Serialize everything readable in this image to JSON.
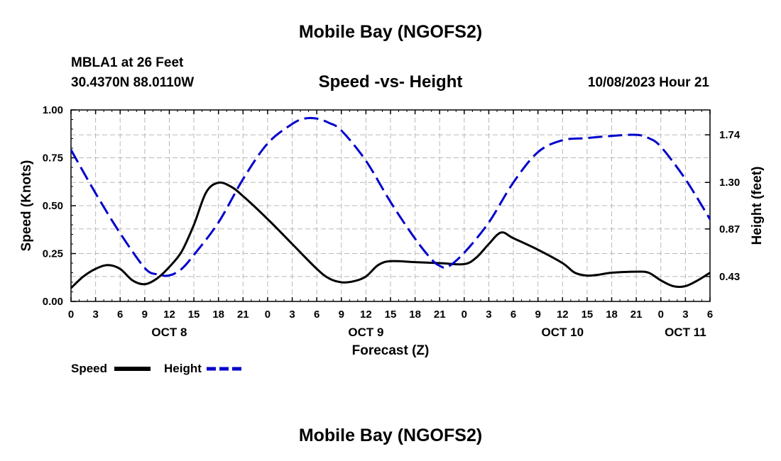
{
  "header": {
    "title_top": "Mobile Bay (NGOFS2)",
    "station": "MBLA1 at 26 Feet",
    "coords": "30.4370N  88.0110W",
    "subtitle": "Speed -vs- Height",
    "datetime": "10/08/2023 Hour 21",
    "title_bottom": "Mobile Bay (NGOFS2)"
  },
  "legend": {
    "speed_label": "Speed",
    "height_label": "Height"
  },
  "chart_data": {
    "type": "line",
    "title": "Speed -vs- Height",
    "xlabel": "Forecast (Z)",
    "ylabel": "Speed (Knots)",
    "y2label": "Height (feet)",
    "xlim": [
      0,
      78
    ],
    "ylim": [
      0,
      1.0
    ],
    "y2lim": [
      0.2,
      1.97
    ],
    "grid": true,
    "x_ticks": [
      0,
      3,
      6,
      9,
      12,
      15,
      18,
      21,
      24,
      27,
      30,
      33,
      36,
      39,
      42,
      45,
      48,
      51,
      54,
      57,
      60,
      63,
      66,
      69,
      72,
      75,
      78
    ],
    "x_tick_labels": [
      "0",
      "3",
      "6",
      "9",
      "12",
      "15",
      "18",
      "21",
      "0",
      "3",
      "6",
      "9",
      "12",
      "15",
      "18",
      "21",
      "0",
      "3",
      "6",
      "9",
      "12",
      "15",
      "18",
      "21",
      "0",
      "3",
      "6"
    ],
    "date_labels": [
      {
        "x": 12,
        "label": "OCT 8"
      },
      {
        "x": 36,
        "label": "OCT 9"
      },
      {
        "x": 60,
        "label": "OCT 10"
      },
      {
        "x": 75,
        "label": "OCT 11"
      }
    ],
    "y_ticks": [
      0.0,
      0.25,
      0.5,
      0.75,
      1.0
    ],
    "y_tick_labels": [
      "0.00",
      "0.25",
      "0.50",
      "0.75",
      "1.00"
    ],
    "y2_ticks": [
      0.43,
      0.87,
      1.3,
      1.74
    ],
    "y2_tick_labels": [
      "0.43",
      "0.87",
      "1.30",
      "1.74"
    ],
    "series": [
      {
        "name": "Speed",
        "axis": "left",
        "color": "#000000",
        "dash": "solid",
        "points": [
          [
            0,
            0.07
          ],
          [
            1.5,
            0.13
          ],
          [
            3,
            0.17
          ],
          [
            4.5,
            0.19
          ],
          [
            6,
            0.17
          ],
          [
            7.5,
            0.11
          ],
          [
            9,
            0.09
          ],
          [
            10.5,
            0.12
          ],
          [
            12,
            0.18
          ],
          [
            13.5,
            0.26
          ],
          [
            15,
            0.4
          ],
          [
            16.5,
            0.57
          ],
          [
            18,
            0.62
          ],
          [
            19.5,
            0.6
          ],
          [
            21,
            0.55
          ],
          [
            24,
            0.43
          ],
          [
            27,
            0.3
          ],
          [
            30,
            0.17
          ],
          [
            31.5,
            0.12
          ],
          [
            33,
            0.1
          ],
          [
            34.5,
            0.105
          ],
          [
            36,
            0.13
          ],
          [
            37.5,
            0.19
          ],
          [
            39,
            0.21
          ],
          [
            42,
            0.205
          ],
          [
            45,
            0.2
          ],
          [
            48,
            0.195
          ],
          [
            49.5,
            0.23
          ],
          [
            51,
            0.3
          ],
          [
            52.5,
            0.36
          ],
          [
            54,
            0.33
          ],
          [
            57,
            0.27
          ],
          [
            60,
            0.2
          ],
          [
            61.5,
            0.15
          ],
          [
            63,
            0.135
          ],
          [
            64.5,
            0.14
          ],
          [
            66,
            0.15
          ],
          [
            69,
            0.155
          ],
          [
            70.5,
            0.15
          ],
          [
            72,
            0.11
          ],
          [
            73.5,
            0.08
          ],
          [
            75,
            0.08
          ],
          [
            76.5,
            0.11
          ],
          [
            78,
            0.15
          ]
        ]
      },
      {
        "name": "Height",
        "axis": "right",
        "color": "#0000cc",
        "dash": "dashed",
        "points": [
          [
            0,
            1.6
          ],
          [
            3,
            1.2
          ],
          [
            6,
            0.83
          ],
          [
            9,
            0.51
          ],
          [
            10.5,
            0.45
          ],
          [
            12,
            0.44
          ],
          [
            13.5,
            0.5
          ],
          [
            15,
            0.63
          ],
          [
            18,
            0.93
          ],
          [
            21,
            1.33
          ],
          [
            24,
            1.66
          ],
          [
            27,
            1.84
          ],
          [
            28.5,
            1.89
          ],
          [
            30,
            1.89
          ],
          [
            31.5,
            1.85
          ],
          [
            33,
            1.78
          ],
          [
            36,
            1.5
          ],
          [
            39,
            1.12
          ],
          [
            42,
            0.78
          ],
          [
            44,
            0.59
          ],
          [
            45,
            0.53
          ],
          [
            46,
            0.52
          ],
          [
            48,
            0.65
          ],
          [
            51,
            0.93
          ],
          [
            54,
            1.3
          ],
          [
            57,
            1.58
          ],
          [
            60,
            1.69
          ],
          [
            63,
            1.71
          ],
          [
            66,
            1.73
          ],
          [
            69,
            1.74
          ],
          [
            70.5,
            1.71
          ],
          [
            72,
            1.63
          ],
          [
            75,
            1.33
          ],
          [
            78,
            0.96
          ]
        ]
      }
    ]
  }
}
